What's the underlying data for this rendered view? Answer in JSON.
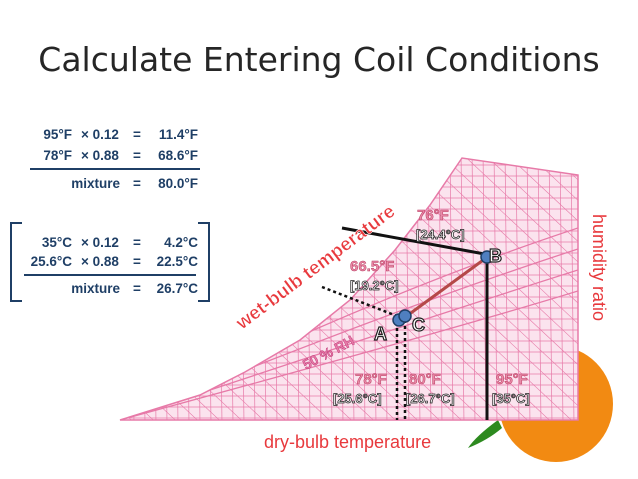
{
  "title": "Calculate Entering Coil Conditions",
  "calc_f": {
    "rows": [
      {
        "temp": "95°F",
        "op": "× 0.12",
        "eq": "=",
        "result": "11.4°F"
      },
      {
        "temp": "78°F",
        "op": "× 0.88",
        "eq": "=",
        "result": "68.6°F"
      }
    ],
    "mixture_label": "mixture",
    "mixture_eq": "=",
    "mixture_value": "80.0°F"
  },
  "calc_c": {
    "rows": [
      {
        "temp": "35°C",
        "op": "× 0.12",
        "eq": "=",
        "result": "4.2°C"
      },
      {
        "temp": "25.6°C",
        "op": "× 0.88",
        "eq": "=",
        "result": "22.5°C"
      }
    ],
    "mixture_label": "mixture",
    "mixture_eq": "=",
    "mixture_value": "26.7°C"
  },
  "chart": {
    "wet_bulb_label": "wet-bulb temperature",
    "humidity_label": "humidity ratio",
    "dry_bulb_label": "dry-bulb temperature",
    "rh_label": "50 % RH",
    "point_a": "A",
    "point_b": "B",
    "point_c": "C",
    "wb_b_f": "76°F",
    "wb_b_c": "[24.4°C]",
    "wb_c_f": "66.5°F",
    "wb_c_c": "[19.2°C]",
    "db_a_f": "78°F",
    "db_a_c": "[25.6°C]",
    "db_c_f": "80°F",
    "db_c_c": "[26.7°C]",
    "db_b_f": "95°F",
    "db_b_c": "[35°C]"
  },
  "colors": {
    "grid_line": "#e77aa8",
    "grid_fill": "#fbe3ee",
    "heading_red": "#e8393d",
    "dark_blue": "#1f3f66",
    "point_blue": "#4f7fc0",
    "mix_line": "#b54848",
    "orange": "#f28a12",
    "leaf": "#2d8a1f"
  }
}
